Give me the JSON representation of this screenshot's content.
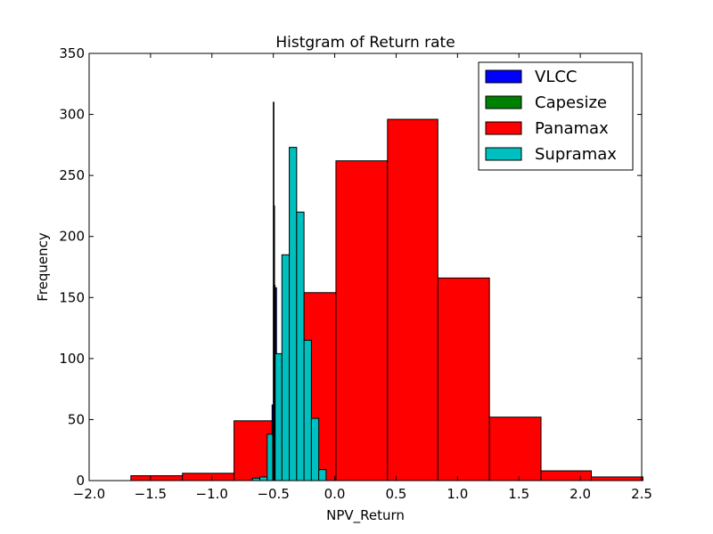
{
  "chart_data": {
    "type": "histogram",
    "title": "Histgram of Return rate",
    "xlabel": "NPV_Return",
    "ylabel": "Frequency",
    "xlim": [
      -2.0,
      2.5
    ],
    "ylim": [
      0,
      350
    ],
    "xticks": [
      "−2.0",
      "−1.5",
      "−1.0",
      "−0.5",
      "0.0",
      "0.5",
      "1.0",
      "1.5",
      "2.0",
      "2.5"
    ],
    "yticks": [
      "0",
      "50",
      "100",
      "150",
      "200",
      "250",
      "300",
      "350"
    ],
    "xtick_values": [
      -2.0,
      -1.5,
      -1.0,
      -0.5,
      0.0,
      0.5,
      1.0,
      1.5,
      2.0,
      2.5
    ],
    "ytick_values": [
      0,
      50,
      100,
      150,
      200,
      250,
      300,
      350
    ],
    "legend_position": "top-right",
    "series": [
      {
        "name": "VLCC",
        "color": "#0000ff",
        "bins": [
          {
            "x0": -0.522,
            "x1": -0.51,
            "count": 2
          },
          {
            "x0": -0.51,
            "x1": -0.498,
            "count": 62
          },
          {
            "x0": -0.498,
            "x1": -0.486,
            "count": 160
          },
          {
            "x0": -0.486,
            "x1": -0.474,
            "count": 158
          }
        ]
      },
      {
        "name": "Capesize",
        "color": "#008000",
        "bins": [
          {
            "x0": -0.505,
            "x1": -0.5,
            "count": 45
          },
          {
            "x0": -0.5,
            "x1": -0.495,
            "count": 310
          },
          {
            "x0": -0.495,
            "x1": -0.49,
            "count": 225
          },
          {
            "x0": -0.49,
            "x1": -0.485,
            "count": 150
          }
        ]
      },
      {
        "name": "Panamax",
        "color": "#ff0000",
        "bins": [
          {
            "x0": -1.66,
            "x1": -1.24,
            "count": 4
          },
          {
            "x0": -1.24,
            "x1": -0.82,
            "count": 6
          },
          {
            "x0": -0.82,
            "x1": -0.41,
            "count": 49
          },
          {
            "x0": -0.41,
            "x1": 0.01,
            "count": 154
          },
          {
            "x0": 0.01,
            "x1": 0.43,
            "count": 262
          },
          {
            "x0": 0.43,
            "x1": 0.84,
            "count": 296
          },
          {
            "x0": 0.84,
            "x1": 1.26,
            "count": 166
          },
          {
            "x0": 1.26,
            "x1": 1.68,
            "count": 52
          },
          {
            "x0": 1.68,
            "x1": 2.09,
            "count": 8
          },
          {
            "x0": 2.09,
            "x1": 2.51,
            "count": 3
          }
        ]
      },
      {
        "name": "Supramax",
        "color": "#00bfbf",
        "bins": [
          {
            "x0": -0.67,
            "x1": -0.61,
            "count": 2
          },
          {
            "x0": -0.61,
            "x1": -0.55,
            "count": 3
          },
          {
            "x0": -0.55,
            "x1": -0.49,
            "count": 38
          },
          {
            "x0": -0.49,
            "x1": -0.43,
            "count": 104
          },
          {
            "x0": -0.43,
            "x1": -0.37,
            "count": 185
          },
          {
            "x0": -0.37,
            "x1": -0.31,
            "count": 273
          },
          {
            "x0": -0.31,
            "x1": -0.25,
            "count": 220
          },
          {
            "x0": -0.25,
            "x1": -0.19,
            "count": 115
          },
          {
            "x0": -0.19,
            "x1": -0.13,
            "count": 51
          },
          {
            "x0": -0.13,
            "x1": -0.07,
            "count": 9
          }
        ]
      }
    ]
  }
}
